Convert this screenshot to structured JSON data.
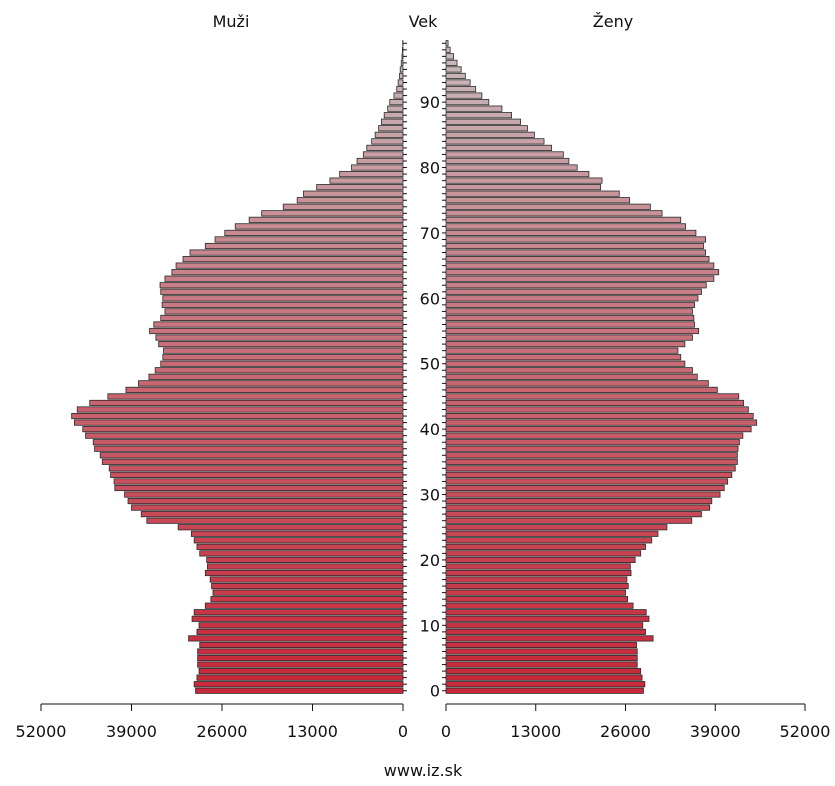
{
  "chart_data": {
    "type": "bar",
    "subtype": "population-pyramid",
    "left_label": "Muži",
    "center_label": "Vek",
    "right_label": "Ženy",
    "footer": "www.iz.sk",
    "x_ticks": [
      52000,
      39000,
      26000,
      13000,
      0
    ],
    "x_tick_labels": [
      "52000",
      "39000",
      "26000",
      "13000",
      "0"
    ],
    "y_ticks": [
      0,
      10,
      20,
      30,
      40,
      50,
      60,
      70,
      80,
      90
    ],
    "y_tick_labels": [
      "0",
      "10",
      "20",
      "30",
      "40",
      "50",
      "60",
      "70",
      "80",
      "90"
    ],
    "xlim": [
      0,
      52000
    ],
    "ylim": [
      0,
      99
    ],
    "colors": {
      "young": "#c8283a",
      "old": "#c8bcbe",
      "edge": "#2a2a2a"
    },
    "ages": [
      0,
      1,
      2,
      3,
      4,
      5,
      6,
      7,
      8,
      9,
      10,
      11,
      12,
      13,
      14,
      15,
      16,
      17,
      18,
      19,
      20,
      21,
      22,
      23,
      24,
      25,
      26,
      27,
      28,
      29,
      30,
      31,
      32,
      33,
      34,
      35,
      36,
      37,
      38,
      39,
      40,
      41,
      42,
      43,
      44,
      45,
      46,
      47,
      48,
      49,
      50,
      51,
      52,
      53,
      54,
      55,
      56,
      57,
      58,
      59,
      60,
      61,
      62,
      63,
      64,
      65,
      66,
      67,
      68,
      69,
      70,
      71,
      72,
      73,
      74,
      75,
      76,
      77,
      78,
      79,
      80,
      81,
      82,
      83,
      84,
      85,
      86,
      87,
      88,
      89,
      90,
      91,
      92,
      93,
      94,
      95,
      96,
      97,
      98,
      99
    ],
    "series": [
      {
        "name": "Muži",
        "values": [
          29800,
          30000,
          29600,
          29300,
          29500,
          29500,
          29500,
          29200,
          30800,
          29600,
          29300,
          30300,
          30000,
          28400,
          27600,
          27300,
          27500,
          27700,
          28400,
          28100,
          28200,
          29200,
          29600,
          30000,
          30400,
          32300,
          36800,
          37600,
          39000,
          39500,
          40000,
          41400,
          41500,
          42000,
          42200,
          43200,
          43500,
          44300,
          44500,
          45600,
          46000,
          47200,
          47600,
          46800,
          45000,
          42400,
          39800,
          38000,
          36500,
          35600,
          34800,
          34500,
          34400,
          35100,
          35500,
          36400,
          35800,
          34800,
          34200,
          34600,
          34500,
          34800,
          34900,
          34200,
          33200,
          32600,
          31600,
          30600,
          28400,
          27000,
          25600,
          24100,
          22100,
          20300,
          17200,
          15200,
          14300,
          12400,
          10500,
          9100,
          7400,
          6600,
          5700,
          5200,
          4500,
          4000,
          3500,
          3100,
          2700,
          2200,
          1900,
          1300,
          900,
          700,
          500,
          400,
          250,
          150,
          80,
          40
        ]
      },
      {
        "name": "Ženy",
        "values": [
          28600,
          28800,
          28400,
          28200,
          27700,
          27700,
          27700,
          27600,
          30000,
          28900,
          28500,
          29400,
          29000,
          27100,
          26300,
          26000,
          26400,
          26200,
          26800,
          26700,
          27400,
          28200,
          28900,
          29800,
          30700,
          32000,
          35600,
          37000,
          38200,
          38500,
          39700,
          40300,
          40800,
          41400,
          41900,
          42200,
          42200,
          42300,
          42500,
          43000,
          44200,
          45000,
          44500,
          43800,
          43100,
          42400,
          39300,
          38000,
          36400,
          35700,
          34600,
          34000,
          33600,
          34600,
          35700,
          36600,
          36000,
          35900,
          35700,
          36000,
          36500,
          37000,
          37700,
          38800,
          39500,
          38800,
          38100,
          37600,
          37300,
          37600,
          36200,
          34700,
          34000,
          31300,
          29600,
          26600,
          25100,
          22400,
          22600,
          20700,
          19000,
          17800,
          17000,
          15300,
          14200,
          12800,
          11800,
          10800,
          9500,
          8100,
          6200,
          5200,
          4300,
          3500,
          2800,
          2200,
          1600,
          1100,
          600,
          300
        ]
      }
    ]
  }
}
